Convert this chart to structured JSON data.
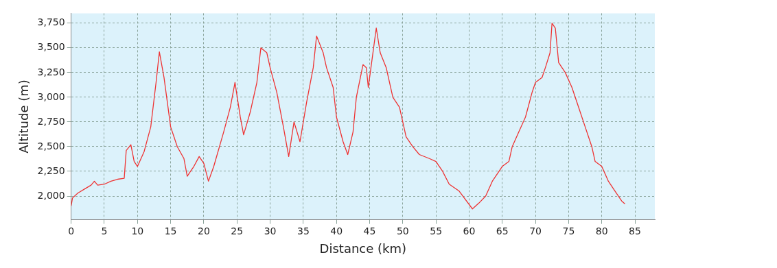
{
  "chart_data": {
    "type": "line",
    "xlabel": "Distance (km)",
    "ylabel": "Altitude (m)",
    "xlim": [
      0,
      88
    ],
    "ylim": [
      1760,
      3850
    ],
    "xticks": [
      0,
      5,
      10,
      15,
      20,
      25,
      30,
      35,
      40,
      45,
      50,
      55,
      60,
      65,
      70,
      75,
      80,
      85
    ],
    "yticks": [
      {
        "value": 2000,
        "label": "2,000"
      },
      {
        "value": 2250,
        "label": "2,250"
      },
      {
        "value": 2500,
        "label": "2,500"
      },
      {
        "value": 2750,
        "label": "2,750"
      },
      {
        "value": 3000,
        "label": "3,000"
      },
      {
        "value": 3250,
        "label": "3,250"
      },
      {
        "value": 3500,
        "label": "3,500"
      },
      {
        "value": 3750,
        "label": "3,750"
      }
    ],
    "grid": true,
    "legend": false,
    "marker": "none",
    "line_style": "solid",
    "series": [
      {
        "color": "#ee3333",
        "x": [
          0,
          0.2,
          1,
          2,
          3,
          3.5,
          4,
          5,
          6,
          7,
          8,
          8.3,
          9,
          9.5,
          10,
          11,
          12,
          12.8,
          13.3,
          14,
          15,
          16,
          17,
          17.5,
          18,
          18.5,
          19.3,
          20,
          20.7,
          21.5,
          23,
          24,
          24.7,
          25.5,
          26,
          27,
          28,
          28.6,
          29.5,
          30,
          31,
          32,
          32.8,
          33.6,
          34.5,
          35.5,
          36.5,
          37,
          38,
          38.5,
          39.5,
          40,
          41,
          41.7,
          42.5,
          43,
          44,
          44.5,
          44.8,
          45.2,
          46,
          46.6,
          47.5,
          48.5,
          49.5,
          50.5,
          51.5,
          52.5,
          54,
          55,
          56,
          57,
          58.5,
          60.5,
          61.5,
          62.5,
          63.5,
          65,
          66,
          66.5,
          67.5,
          68.5,
          69.5,
          70,
          71,
          71.5,
          72.2,
          72.5,
          73,
          73.5,
          74.5,
          75.5,
          76.5,
          77.5,
          78.5,
          79,
          80,
          81,
          82,
          83,
          83.5
        ],
        "values": [
          1900,
          1980,
          2030,
          2070,
          2110,
          2150,
          2110,
          2120,
          2150,
          2170,
          2180,
          2460,
          2520,
          2350,
          2300,
          2450,
          2700,
          3150,
          3460,
          3200,
          2700,
          2500,
          2380,
          2200,
          2250,
          2300,
          2400,
          2330,
          2150,
          2300,
          2650,
          2900,
          3150,
          2800,
          2620,
          2850,
          3150,
          3500,
          3450,
          3300,
          3050,
          2700,
          2400,
          2750,
          2550,
          2950,
          3300,
          3620,
          3450,
          3300,
          3100,
          2800,
          2550,
          2420,
          2650,
          3000,
          3330,
          3300,
          3100,
          3300,
          3700,
          3450,
          3300,
          3000,
          2900,
          2600,
          2500,
          2420,
          2380,
          2350,
          2250,
          2120,
          2050,
          1870,
          1930,
          2000,
          2150,
          2300,
          2350,
          2500,
          2650,
          2800,
          3050,
          3150,
          3200,
          3300,
          3450,
          3750,
          3700,
          3350,
          3250,
          3100,
          2900,
          2700,
          2500,
          2350,
          2300,
          2150,
          2050,
          1950,
          1920
        ]
      }
    ]
  }
}
